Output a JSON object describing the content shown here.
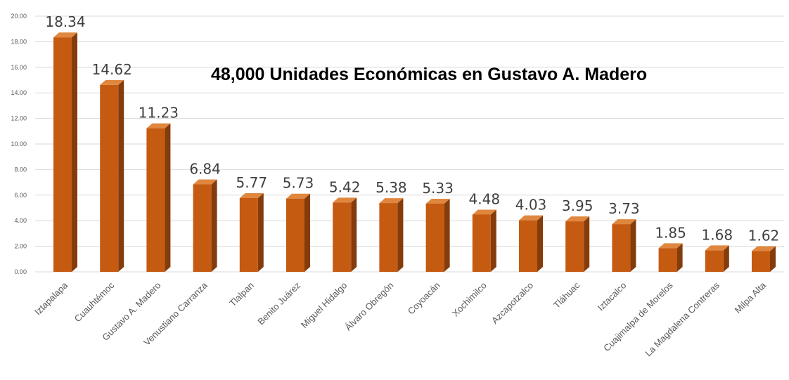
{
  "chart_data": {
    "type": "bar",
    "title": "48,000 Unidades Económicas en Gustavo A. Madero",
    "xlabel": "",
    "ylabel": "",
    "categories": [
      "Iztapalapa",
      "Cuauhtémoc",
      "Gustavo A. Madero",
      "Venustiano Carranza",
      "Tlalpan",
      "Benito Juárez",
      "Miguel Hidalgo",
      "Álvaro Obregón",
      "Coyoacán",
      "Xochimilco",
      "Azcapotzalco",
      "Tláhuac",
      "Iztacalco",
      "Cuajimalpa de Morelos",
      "La Magdalena Contreras",
      "Milpa Alta"
    ],
    "values": [
      18.34,
      14.62,
      11.23,
      6.84,
      5.77,
      5.73,
      5.42,
      5.38,
      5.33,
      4.48,
      4.03,
      3.95,
      3.73,
      1.85,
      1.68,
      1.62
    ],
    "data_labels": [
      "18.34",
      "14.62",
      "11.23",
      "6.84",
      "5.77",
      "5.73",
      "5.42",
      "5.38",
      "5.33",
      "4.48",
      "4.03",
      "3.95",
      "3.73",
      "1.85",
      "1.68",
      "1.62"
    ],
    "y_ticks": [
      "0.00",
      "2.00",
      "4.00",
      "6.00",
      "8.00",
      "10.00",
      "12.00",
      "14.00",
      "16.00",
      "18.00",
      "20.00"
    ],
    "ylim": [
      0,
      20
    ],
    "grid": true,
    "legend": "none",
    "style": "3d-bar",
    "colors": {
      "bar_front": "#C55A11",
      "bar_side": "#843C0C",
      "bar_top": "#E0873F",
      "gridline": "#D9D9D9",
      "tick_label": "#595959",
      "data_label": "#404040"
    }
  }
}
